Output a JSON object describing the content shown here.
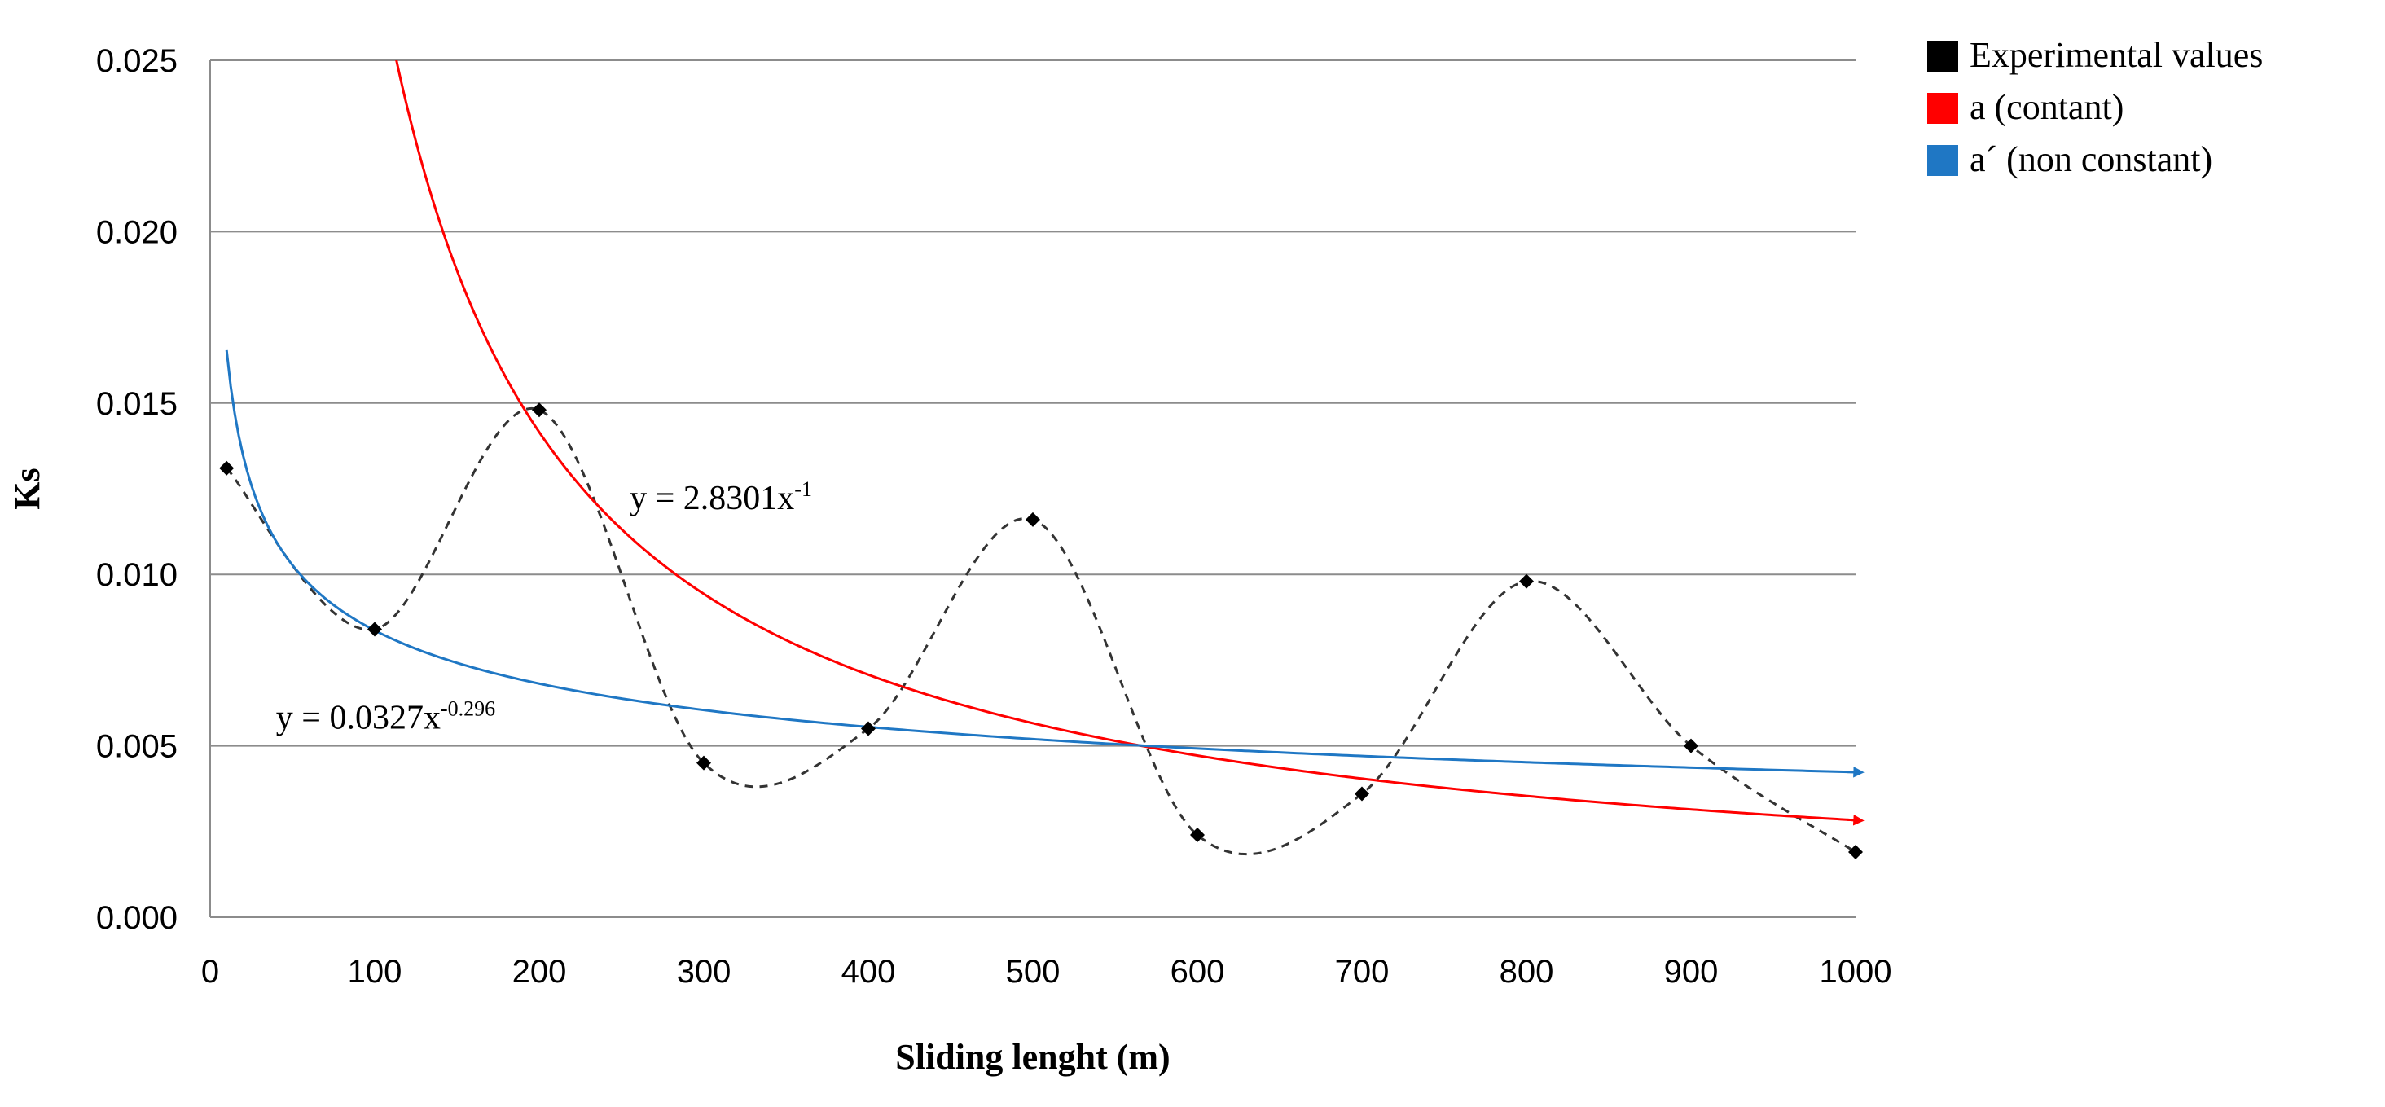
{
  "chart_data": {
    "type": "line",
    "title": "",
    "xlabel": "Sliding lenght (m)",
    "ylabel": "Ks",
    "xlim": [
      0,
      1000
    ],
    "ylim": [
      0,
      0.025
    ],
    "xticks": [
      0,
      100,
      200,
      300,
      400,
      500,
      600,
      700,
      800,
      900,
      1000
    ],
    "xtick_labels": [
      "0",
      "100",
      "200",
      "300",
      "400",
      "500",
      "600",
      "700",
      "800",
      "900",
      "1000"
    ],
    "yticks": [
      0,
      0.005,
      0.01,
      0.015,
      0.02,
      0.025
    ],
    "ytick_labels": [
      "0.000",
      "0.005",
      "0.010",
      "0.015",
      "0.020",
      "0.025"
    ],
    "grid": "horizontal",
    "legend_position": "top-right",
    "series": [
      {
        "name": "Experimental values",
        "kind": "scatter-smooth-dashed",
        "color": "#000000",
        "x": [
          10,
          100,
          200,
          300,
          400,
          500,
          600,
          700,
          800,
          900,
          1000
        ],
        "y": [
          0.0131,
          0.0084,
          0.0148,
          0.0045,
          0.0055,
          0.0116,
          0.0024,
          0.0036,
          0.0098,
          0.005,
          0.0019
        ]
      },
      {
        "name": "a (contant)",
        "kind": "power-fit",
        "color": "#ff0000",
        "coef": 2.8301,
        "exponent": -1,
        "x_from": 100,
        "x_to": 1000
      },
      {
        "name": "a´ (non constant)",
        "kind": "power-fit",
        "color": "#1f77c4",
        "coef": 0.0327,
        "exponent": -0.296,
        "x_from": 10,
        "x_to": 1000
      }
    ],
    "annotations": [
      {
        "base": "y = 2.8301x",
        "sup": "-1",
        "x": 255,
        "y": 0.0119
      },
      {
        "base": "y = 0.0327x",
        "sup": "-0.296",
        "x": 40,
        "y": 0.0055
      }
    ]
  },
  "legend": {
    "items": [
      {
        "label": "Experimental values",
        "color": "#000000"
      },
      {
        "label": "a (contant)",
        "color": "#ff0000"
      },
      {
        "label": "a´ (non constant)",
        "color": "#1f77c4"
      }
    ]
  }
}
